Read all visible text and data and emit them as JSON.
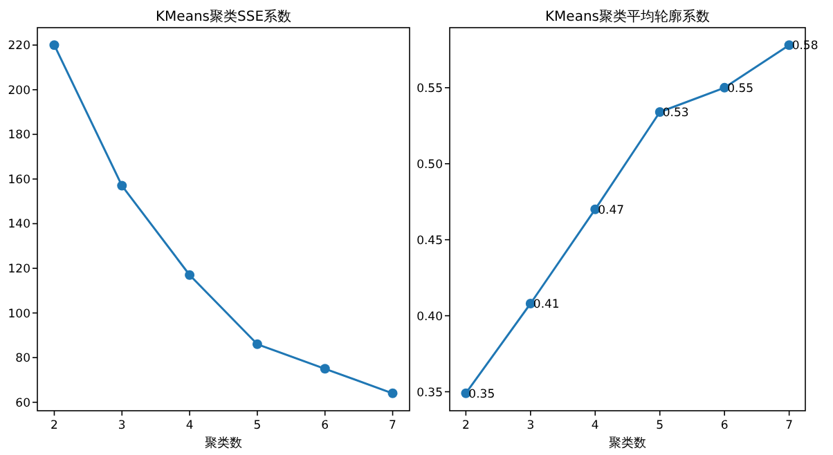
{
  "chart_data": [
    {
      "type": "line",
      "title": "KMeans聚类SSE系数",
      "xlabel": "聚类数",
      "x": [
        2,
        3,
        4,
        5,
        6,
        7
      ],
      "values": [
        220,
        157,
        117,
        86,
        75,
        64
      ],
      "color": "#1f77b4",
      "marker": "circle",
      "xlim": [
        1.75,
        7.25
      ],
      "ylim": [
        56.2,
        227.8
      ],
      "xticks": [
        2,
        3,
        4,
        5,
        6,
        7
      ],
      "yticks": [
        60,
        80,
        100,
        120,
        140,
        160,
        180,
        200,
        220
      ]
    },
    {
      "type": "line",
      "title": "KMeans聚类平均轮廓系数",
      "xlabel": "聚类数",
      "x": [
        2,
        3,
        4,
        5,
        6,
        7
      ],
      "values": [
        0.349,
        0.408,
        0.47,
        0.534,
        0.55,
        0.578
      ],
      "value_labels": [
        "0.35",
        "0.41",
        "0.47",
        "0.53",
        "0.55",
        "0.58"
      ],
      "color": "#1f77b4",
      "marker": "circle",
      "xlim": [
        1.75,
        7.25
      ],
      "ylim": [
        0.3375,
        0.5895
      ],
      "xticks": [
        2,
        3,
        4,
        5,
        6,
        7
      ],
      "yticks": [
        0.35,
        {
          "value": 0.4,
          "label": "0.40"
        },
        0.45,
        {
          "value": 0.5,
          "label": "0.50"
        },
        0.55
      ]
    }
  ]
}
